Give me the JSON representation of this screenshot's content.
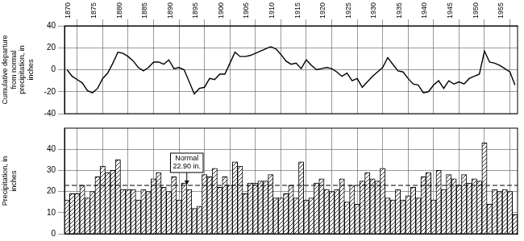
{
  "chart_data": [
    {
      "type": "line",
      "y_label": "Cumulative departure from normal precipitation, in inches",
      "categories": [
        null,
        null,
        "1870",
        null,
        null,
        null,
        null,
        "1875",
        null,
        null,
        null,
        null,
        "1880",
        null,
        null,
        null,
        null,
        "1885",
        null,
        null,
        null,
        null,
        "1890",
        null,
        null,
        null,
        null,
        "1895",
        null,
        null,
        null,
        null,
        "1900",
        null,
        null,
        null,
        null,
        "1905",
        null,
        null,
        null,
        null,
        "1910",
        null,
        null,
        null,
        null,
        "1915",
        null,
        null,
        null,
        null,
        "1920",
        null,
        null,
        null,
        null,
        "1925",
        null,
        null,
        null,
        null,
        "1930",
        null,
        null,
        null,
        null,
        "1935",
        null,
        null,
        null,
        null,
        "1940",
        null,
        null,
        null,
        null,
        "1945",
        null,
        null,
        null,
        null,
        "1950",
        null,
        null,
        null,
        null,
        "1955",
        null
      ],
      "values": [
        0,
        -6,
        -9,
        -12,
        -19,
        -21,
        -17,
        -8,
        -3,
        6,
        16,
        15,
        12,
        8,
        2,
        -1,
        2,
        7,
        7,
        5,
        9,
        1,
        2,
        0,
        -11,
        -22,
        -17,
        -16,
        -8,
        -9,
        -4,
        -4,
        6,
        16,
        12,
        12,
        13,
        15,
        17,
        19,
        21,
        19,
        14,
        8,
        5,
        6,
        1,
        9,
        4,
        0,
        1,
        2,
        1,
        -2,
        -6,
        -3,
        -10,
        -8,
        -16,
        -11,
        -6,
        -2,
        2,
        11,
        5,
        -1,
        -2,
        -8,
        -13,
        -14,
        -21,
        -20,
        -14,
        -10,
        -17,
        -10,
        -13,
        -11,
        -13,
        -8,
        -6,
        -4,
        17,
        7,
        6,
        4,
        1,
        -2,
        -14
      ],
      "color": "#000000",
      "ylim": [
        -40,
        40
      ],
      "yticks": [
        -40,
        -20,
        0,
        20,
        40
      ],
      "grid": true
    },
    {
      "type": "bar",
      "y_label": "Precipitation, in inches",
      "categories": [
        null,
        null,
        "1870",
        null,
        null,
        null,
        null,
        "1875",
        null,
        null,
        null,
        null,
        "1880",
        null,
        null,
        null,
        null,
        "1885",
        null,
        null,
        null,
        null,
        "1890",
        null,
        null,
        null,
        null,
        "1895",
        null,
        null,
        null,
        null,
        "1900",
        null,
        null,
        null,
        null,
        "1905",
        null,
        null,
        null,
        null,
        "1910",
        null,
        null,
        null,
        null,
        "1915",
        null,
        null,
        null,
        null,
        "1920",
        null,
        null,
        null,
        null,
        "1925",
        null,
        null,
        null,
        null,
        "1930",
        null,
        null,
        null,
        null,
        "1935",
        null,
        null,
        null,
        null,
        "1940",
        null,
        null,
        null,
        null,
        "1945",
        null,
        null,
        null,
        null,
        "1950",
        null,
        null,
        null,
        null,
        "1955",
        null
      ],
      "values": [
        16,
        19,
        19,
        23,
        17,
        20,
        27,
        32,
        29,
        30,
        35,
        21,
        21,
        21,
        16,
        21,
        20,
        26,
        29,
        22,
        20,
        27,
        16,
        24,
        21,
        12,
        13,
        28,
        27,
        31,
        22,
        27,
        23,
        34,
        32,
        19,
        24,
        24,
        25,
        25,
        28,
        17,
        17,
        19,
        23,
        17,
        34,
        16,
        17,
        24,
        26,
        21,
        20,
        21,
        26,
        15,
        23,
        14,
        25,
        29,
        26,
        25,
        31,
        17,
        16,
        21,
        16,
        18,
        22,
        17,
        27,
        29,
        16,
        30,
        21,
        28,
        26,
        23,
        28,
        24,
        26,
        25,
        43,
        14,
        21,
        20,
        21,
        20,
        9
      ],
      "color": "#000000",
      "ylim": [
        0,
        50
      ],
      "yticks": [
        0,
        10,
        20,
        30,
        40
      ],
      "grid": true,
      "tick_labels": "y",
      "normal": {
        "value": 22.9,
        "label": [
          "Normal",
          "22.90 in."
        ]
      }
    }
  ]
}
